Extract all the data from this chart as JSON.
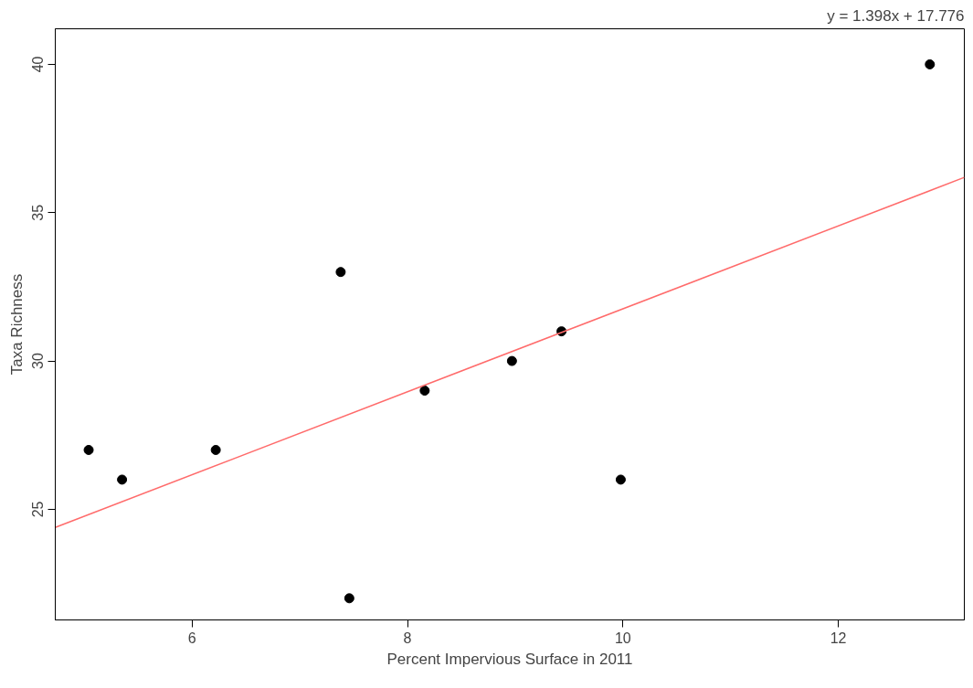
{
  "chart_data": {
    "type": "scatter",
    "xlabel": "Percent Impervious Surface in 2011",
    "ylabel": "Taxa Richness",
    "annotations": [
      "y = 1.398x + 17.776"
    ],
    "xlim": [
      4.73,
      13.17
    ],
    "ylim": [
      21.27,
      41.2
    ],
    "xticks": [
      6,
      8,
      10,
      12
    ],
    "yticks": [
      25,
      30,
      35,
      40
    ],
    "grid": false,
    "series": [
      {
        "color": "#000000",
        "marker": "circle",
        "x": [
          5.04,
          5.35,
          6.22,
          7.38,
          7.46,
          8.16,
          8.97,
          9.43,
          9.98,
          12.85
        ],
        "values": [
          27,
          26,
          27,
          33,
          22,
          29,
          30,
          31,
          26,
          40
        ]
      },
      {
        "type": "line",
        "color": "#ff6b6b",
        "marker": "none",
        "x": [
          4.73,
          13.17
        ],
        "values": [
          24.39,
          36.19
        ]
      }
    ]
  }
}
